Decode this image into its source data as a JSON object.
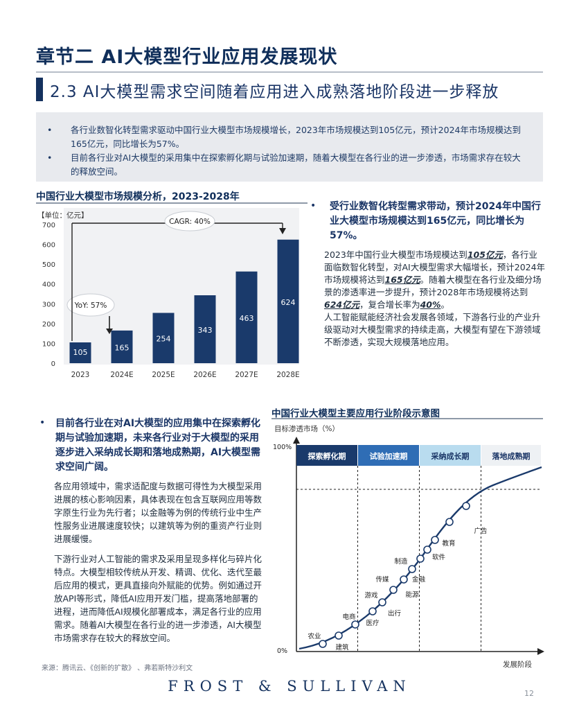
{
  "chapter_title": "章节二 AI大模型行业应用发展现状",
  "section_title": "2.3 AI大模型需求空间随着应用进入成熟落地阶段进一步释放",
  "summary": [
    "各行业数智化转型需求驱动中国行业大模型市场规模增长，2023年市场规模达到105亿元，预计2024年市场规模达到165亿元，同比增长为57%。",
    "目前各行业对AI大模型的采用集中在探索孵化期与试验加速期，随着大模型在各行业的进一步渗透，市场需求存在较大的释放空间。"
  ],
  "bullet_glyph": "•",
  "chart_data": {
    "type": "bar",
    "title": "中国行业大模型市场规模分析，2023-2028年",
    "unit_label": "【单位：亿元】",
    "categories": [
      "2023",
      "2024E",
      "2025E",
      "2026E",
      "2027E",
      "2028E"
    ],
    "values": [
      105,
      165,
      254,
      343,
      463,
      624
    ],
    "ylim": [
      0,
      700
    ],
    "yticks": [
      "0",
      "100",
      "200",
      "300",
      "400",
      "500",
      "600",
      "700"
    ],
    "bar_color": "#1a3a6b",
    "callouts": {
      "yoy": "YoY: 57%",
      "cagr": "CAGR: 40%"
    },
    "grid": false,
    "legend": "none"
  },
  "annotation": {
    "title": "受行业数智化转型需求带动，预计2024年中国行业大模型市场规模达到165亿元，同比增长为57%。",
    "p1_a": "2023年中国行业大模型市场规模达到",
    "p1_b": "105亿元",
    "p1_c": "，各行业面临数智化转型，对AI大模型需求大幅增长，预计2024年市场规模将达到",
    "p1_d": "165亿元",
    "p1_e": "。随着大模型在各行业及细分场景的渗透率进一步提升，预计2028年市场规模将达到",
    "p1_f": "624亿元",
    "p1_g": "，复合增长率为",
    "p1_h": "40%",
    "p1_i": "。",
    "p2": "人工智能赋能经济社会发展各领域，下游各行业的产业升级驱动对大模型需求的持续走高，大模型有望在下游领域不断渗透，实现大规模落地应用。"
  },
  "stage_chart": {
    "title": "中国行业大模型主要应用行业阶段示意图",
    "ylabel": "目标渗透市场（%）",
    "xlabel": "发展阶段",
    "y_top": "100%",
    "y_bottom": "0%",
    "stages": [
      "探索孵化期",
      "试验加速期",
      "采纳成长期",
      "落地成熟期"
    ],
    "stage_colors": [
      "#1a3a6b",
      "#2f6db5",
      "#b9dcef",
      "#eef1f4"
    ],
    "stage_text_colors": [
      "#ffffff",
      "#ffffff",
      "#1a3566",
      "#1a3566"
    ],
    "industries": [
      "农业",
      "建筑",
      "电商",
      "医疗",
      "出行",
      "游戏",
      "能源",
      "传媒",
      "金融",
      "制造",
      "软件",
      "教育",
      "广告"
    ]
  },
  "left": {
    "title": "目前各行业在对AI大模型的应用集中在探索孵化期与试验加速期，未来各行业对于大模型的采用逐步进入采纳成长期和落地成熟期，AI大模型需求空间广阔。",
    "p1": "各应用领域中，需求适配度与数据可得性为大模型采用进展的核心影响因素，具体表现在包含互联网应用等数字原生行业为先行者；以金融等为例的传统行业中生产性服务业进展速度较快；以建筑等为例的重资产行业则进展缓慢。",
    "p2": "下游行业对人工智能的需求及采用呈现多样化与碎片化特点。大模型相较传统从开发、精调、优化、迭代至最后应用的模式，更具直接向外赋能的优势。例如通过开放API等形式，降低AI应用开发门槛，提高落地部署的进程，进而降低AI规模化部署成本，满足各行业的应用需求。随着AI大模型在各行业的进一步渗透，AI大模型市场需求存在较大的释放空间。"
  },
  "source": "来源：腾讯云、《创新的扩散》 、弗若斯特沙利文",
  "footer_logo": "FROST & SULLIVAN",
  "page_number": "12"
}
